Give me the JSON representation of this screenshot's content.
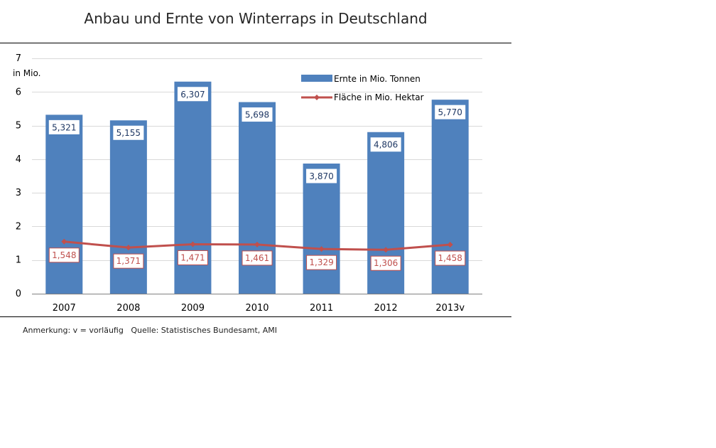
{
  "chart_data": {
    "type": "bar",
    "title": "Anbau und Ernte von Winterraps in Deutschland",
    "ylabel": "in Mio.",
    "ylim": [
      0,
      7
    ],
    "yticks": [
      0,
      1,
      2,
      3,
      4,
      5,
      6,
      7
    ],
    "grid": true,
    "legend_position": "top-right",
    "categories": [
      "2007",
      "2008",
      "2009",
      "2010",
      "2011",
      "2012",
      "2013v"
    ],
    "series": [
      {
        "name": "Ernte in Mio. Tonnen",
        "kind": "bar",
        "color": "#4f81bd",
        "values": [
          5.321,
          5.155,
          6.307,
          5.698,
          3.87,
          4.806,
          5.77
        ],
        "labels": [
          "5,321",
          "5,155",
          "6,307",
          "5,698",
          "3,870",
          "4,806",
          "5,770"
        ]
      },
      {
        "name": "Fläche in Mio. Hektar",
        "kind": "line",
        "color": "#c0504d",
        "values": [
          1.548,
          1.371,
          1.471,
          1.461,
          1.329,
          1.306,
          1.458
        ],
        "labels": [
          "1,548",
          "1,371",
          "1,471",
          "1,461",
          "1,329",
          "1,306",
          "1,458"
        ]
      }
    ]
  },
  "footnote": "Anmerkung: v = vorläufig   Quelle: Statistisches Bundesamt, AMI"
}
